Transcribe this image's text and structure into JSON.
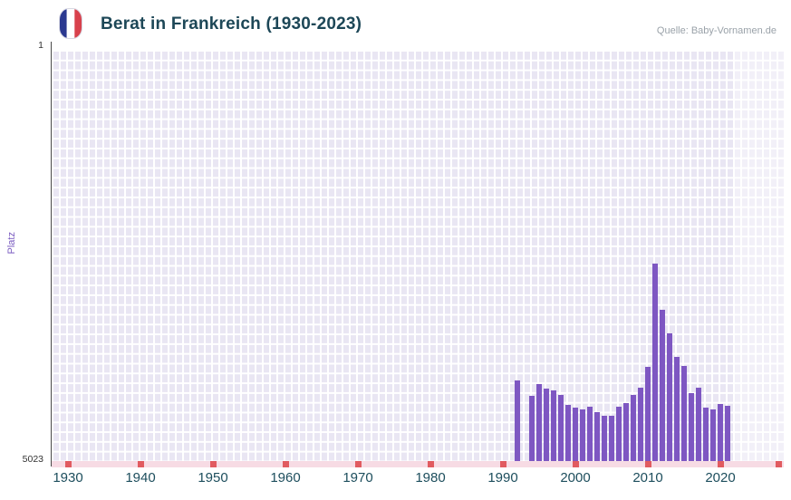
{
  "header": {
    "title": "Berat in Frankreich (1930-2023)",
    "source": "Quelle: Baby-Vornamen.de",
    "flag": "france-flag-icon"
  },
  "chart_data": {
    "type": "bar",
    "title": "Berat in Frankreich (1930-2023)",
    "xlabel": "",
    "ylabel": "Platz",
    "y_axis": {
      "top_label": "1",
      "bottom_label": "5023",
      "min": 1,
      "max": 5023,
      "inverted": true
    },
    "x_ticks": [
      "1930",
      "1940",
      "1950",
      "1960",
      "1970",
      "1980",
      "1990",
      "2000",
      "2010",
      "2020"
    ],
    "x_range": [
      1927.75,
      2028.75
    ],
    "grid": true,
    "legend": false,
    "no_data_band_from_year": 2022,
    "series": [
      {
        "name": "Platz",
        "points": [
          {
            "year": 1992,
            "rank": 4030
          },
          {
            "year": 1994,
            "rank": 4220
          },
          {
            "year": 1995,
            "rank": 4075
          },
          {
            "year": 1996,
            "rank": 4130
          },
          {
            "year": 1997,
            "rank": 4150
          },
          {
            "year": 1998,
            "rank": 4205
          },
          {
            "year": 1999,
            "rank": 4330
          },
          {
            "year": 2000,
            "rank": 4360
          },
          {
            "year": 2001,
            "rank": 4385
          },
          {
            "year": 2002,
            "rank": 4350
          },
          {
            "year": 2003,
            "rank": 4415
          },
          {
            "year": 2004,
            "rank": 4460
          },
          {
            "year": 2005,
            "rank": 4460
          },
          {
            "year": 2006,
            "rank": 4350
          },
          {
            "year": 2007,
            "rank": 4305
          },
          {
            "year": 2008,
            "rank": 4205
          },
          {
            "year": 2009,
            "rank": 4120
          },
          {
            "year": 2010,
            "rank": 3865
          },
          {
            "year": 2011,
            "rank": 2605
          },
          {
            "year": 2012,
            "rank": 3170
          },
          {
            "year": 2013,
            "rank": 3455
          },
          {
            "year": 2014,
            "rank": 3745
          },
          {
            "year": 2015,
            "rank": 3855
          },
          {
            "year": 2016,
            "rank": 4185
          },
          {
            "year": 2017,
            "rank": 4120
          },
          {
            "year": 2018,
            "rank": 4360
          },
          {
            "year": 2019,
            "rank": 4385
          },
          {
            "year": 2020,
            "rank": 4315
          },
          {
            "year": 2021,
            "rank": 4340
          }
        ]
      }
    ]
  },
  "timeline_strip": {
    "marks": [
      1930,
      1940,
      1950,
      1960,
      1970,
      1980,
      1990,
      2000,
      2010,
      2020,
      2028
    ]
  },
  "colors": {
    "bar": "#7e57c2",
    "title": "#1d4757",
    "axis_labels": "#1d4e5d",
    "y_axis_label": "#7a5bc0",
    "source": "#9aa2a9",
    "plot_background": "#e9e6f3",
    "grid_line": "#ffffff",
    "strip_background": "#f7dbe4",
    "strip_mark": "#e15b60",
    "flag_blue": "#2b3990",
    "flag_red": "#d8414c"
  }
}
